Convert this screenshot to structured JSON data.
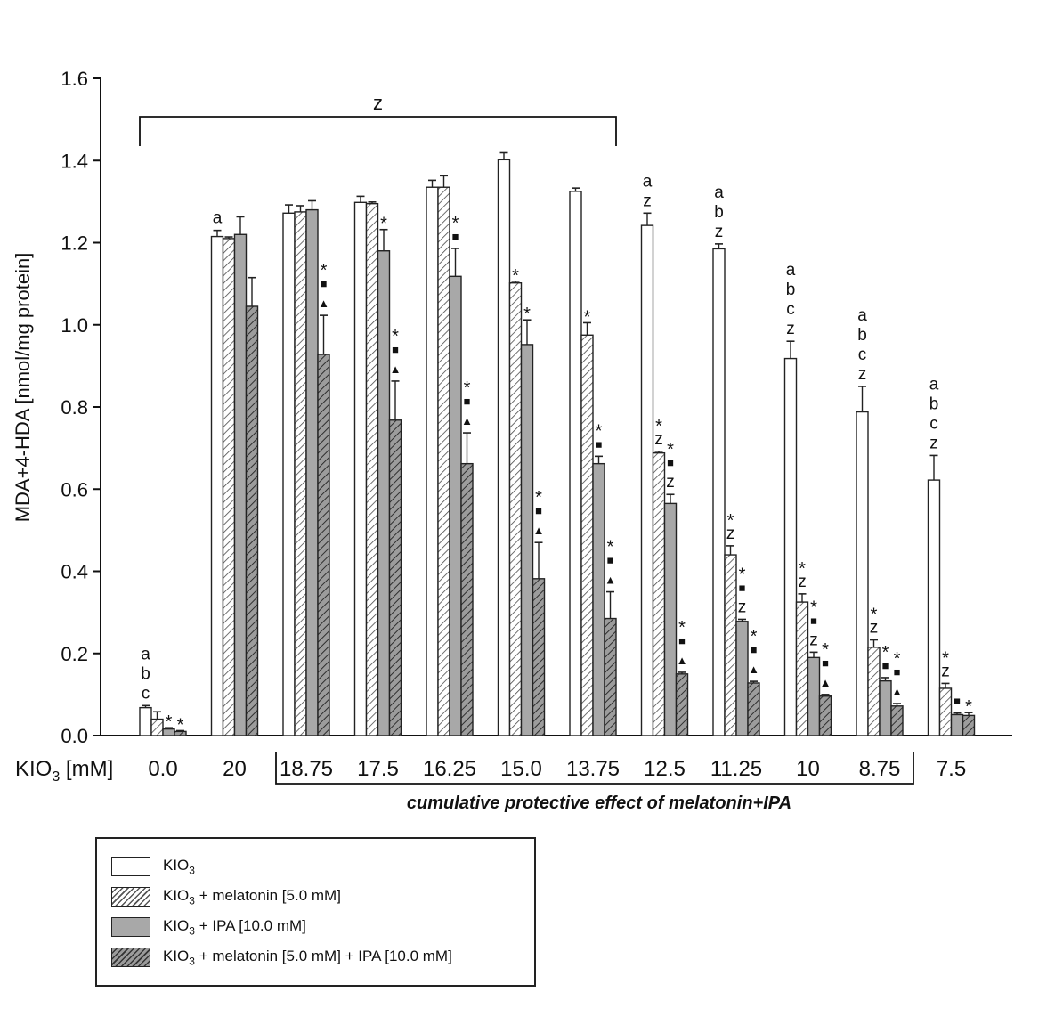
{
  "chart_data": {
    "type": "bar",
    "ylabel": "MDA+4-HDA [nmol/mg protein]",
    "xlabel": "KIO3 [mM]",
    "ylim": [
      0,
      1.6
    ],
    "yticks": [
      "0.0",
      "0.2",
      "0.4",
      "0.6",
      "0.8",
      "1.0",
      "1.2",
      "1.4",
      "1.6"
    ],
    "categories": [
      "0.0",
      "20",
      "18.75",
      "17.5",
      "16.25",
      "15.0",
      "13.75",
      "12.5",
      "11.25",
      "10",
      "8.75",
      "7.5"
    ],
    "series": [
      {
        "name": "KIO3",
        "values": [
          0.068,
          1.215,
          1.272,
          1.298,
          1.335,
          1.402,
          1.325,
          1.242,
          1.185,
          0.918,
          0.788,
          0.622
        ],
        "errors": [
          0.005,
          0.015,
          0.02,
          0.015,
          0.017,
          0.017,
          0.008,
          0.03,
          0.012,
          0.042,
          0.062,
          0.06
        ]
      },
      {
        "name": "KIO3 + melatonin [5.0 mM]",
        "values": [
          0.04,
          1.21,
          1.275,
          1.295,
          1.335,
          1.102,
          0.975,
          0.688,
          0.44,
          0.325,
          0.215,
          0.115
        ],
        "errors": [
          0.018,
          0.004,
          0.015,
          0.004,
          0.028,
          0.004,
          0.03,
          0.004,
          0.022,
          0.02,
          0.018,
          0.012
        ]
      },
      {
        "name": "KIO3 + IPA [10.0 mM]",
        "values": [
          0.016,
          1.22,
          1.28,
          1.18,
          1.118,
          0.952,
          0.662,
          0.565,
          0.278,
          0.19,
          0.133,
          0.051
        ],
        "errors": [
          0.003,
          0.043,
          0.022,
          0.052,
          0.068,
          0.06,
          0.018,
          0.022,
          0.005,
          0.013,
          0.008,
          0.004
        ]
      },
      {
        "name": "KIO3 + melatonin [5.0 mM] + IPA [10.0 mM]",
        "values": [
          0.01,
          1.045,
          0.928,
          0.768,
          0.662,
          0.382,
          0.285,
          0.15,
          0.128,
          0.096,
          0.072,
          0.049
        ],
        "errors": [
          0.002,
          0.07,
          0.095,
          0.095,
          0.075,
          0.088,
          0.065,
          0.004,
          0.004,
          0.004,
          0.006,
          0.007
        ]
      }
    ],
    "annotations": [
      {
        "category": 0,
        "series": 0,
        "lines": [
          "a",
          "b",
          "c"
        ]
      },
      {
        "category": 0,
        "series": 2,
        "lines": [
          "*"
        ]
      },
      {
        "category": 0,
        "series": 3,
        "lines": [
          "*"
        ]
      },
      {
        "category": 1,
        "series": 0,
        "lines": [
          "a"
        ]
      },
      {
        "category": 2,
        "series": 3,
        "lines": [
          "*",
          "■",
          "▲"
        ]
      },
      {
        "category": 3,
        "series": 2,
        "lines": [
          "*"
        ]
      },
      {
        "category": 3,
        "series": 3,
        "lines": [
          "*",
          "■",
          "▲"
        ]
      },
      {
        "category": 4,
        "series": 2,
        "lines": [
          "*",
          "■"
        ]
      },
      {
        "category": 4,
        "series": 3,
        "lines": [
          "*",
          "■",
          "▲"
        ]
      },
      {
        "category": 5,
        "series": 1,
        "lines": [
          "*"
        ]
      },
      {
        "category": 5,
        "series": 2,
        "lines": [
          "*"
        ]
      },
      {
        "category": 5,
        "series": 3,
        "lines": [
          "*",
          "■",
          "▲"
        ]
      },
      {
        "category": 6,
        "series": 1,
        "lines": [
          "*"
        ]
      },
      {
        "category": 6,
        "series": 2,
        "lines": [
          "*",
          "■"
        ]
      },
      {
        "category": 6,
        "series": 3,
        "lines": [
          "*",
          "■",
          "▲"
        ]
      },
      {
        "category": 7,
        "series": 0,
        "lines": [
          "a",
          "z"
        ]
      },
      {
        "category": 7,
        "series": 1,
        "lines": [
          "*",
          "z"
        ]
      },
      {
        "category": 7,
        "series": 2,
        "lines": [
          "*",
          "■",
          "z"
        ]
      },
      {
        "category": 7,
        "series": 3,
        "lines": [
          "*",
          "■",
          "▲"
        ]
      },
      {
        "category": 8,
        "series": 0,
        "lines": [
          "a",
          "b",
          "z"
        ]
      },
      {
        "category": 8,
        "series": 1,
        "lines": [
          "*",
          "z"
        ]
      },
      {
        "category": 8,
        "series": 2,
        "lines": [
          "*",
          "■",
          "z"
        ]
      },
      {
        "category": 8,
        "series": 3,
        "lines": [
          "*",
          "■",
          "▲"
        ]
      },
      {
        "category": 9,
        "series": 0,
        "lines": [
          "a",
          "b",
          "c",
          "z"
        ]
      },
      {
        "category": 9,
        "series": 1,
        "lines": [
          "*",
          "z"
        ]
      },
      {
        "category": 9,
        "series": 2,
        "lines": [
          "*",
          "■",
          "z"
        ]
      },
      {
        "category": 9,
        "series": 3,
        "lines": [
          "*",
          "■",
          "▲"
        ]
      },
      {
        "category": 10,
        "series": 0,
        "lines": [
          "a",
          "b",
          "c",
          "z"
        ]
      },
      {
        "category": 10,
        "series": 1,
        "lines": [
          "*",
          "z"
        ]
      },
      {
        "category": 10,
        "series": 2,
        "lines": [
          "*",
          "■"
        ]
      },
      {
        "category": 10,
        "series": 3,
        "lines": [
          "*",
          "■",
          "▲"
        ]
      },
      {
        "category": 11,
        "series": 0,
        "lines": [
          "a",
          "b",
          "c",
          "z"
        ]
      },
      {
        "category": 11,
        "series": 1,
        "lines": [
          "*",
          "z"
        ]
      },
      {
        "category": 11,
        "series": 2,
        "lines": [
          "■"
        ]
      },
      {
        "category": 11,
        "series": 3,
        "lines": [
          "*"
        ]
      }
    ],
    "top_bracket": {
      "label": "z",
      "from_category": 0,
      "to_category": 6
    },
    "bottom_bracket": {
      "label": "cumulative protective effect of melatonin+IPA",
      "from_category": 2,
      "to_category": 10
    },
    "grid": false,
    "legend_position": "bottom-left"
  },
  "legend": {
    "kio3_base": "KIO",
    "kio3_sub": "3",
    "items": [
      {
        "suffix": ""
      },
      {
        "suffix": " + melatonin [5.0 mM]"
      },
      {
        "suffix": " + IPA [10.0 mM]"
      },
      {
        "suffix": " + melatonin [5.0 mM] + IPA [10.0 mM]"
      }
    ]
  },
  "xaxis": {
    "label_base": "KIO",
    "label_sub": "3",
    "label_rest": " [mM]"
  }
}
